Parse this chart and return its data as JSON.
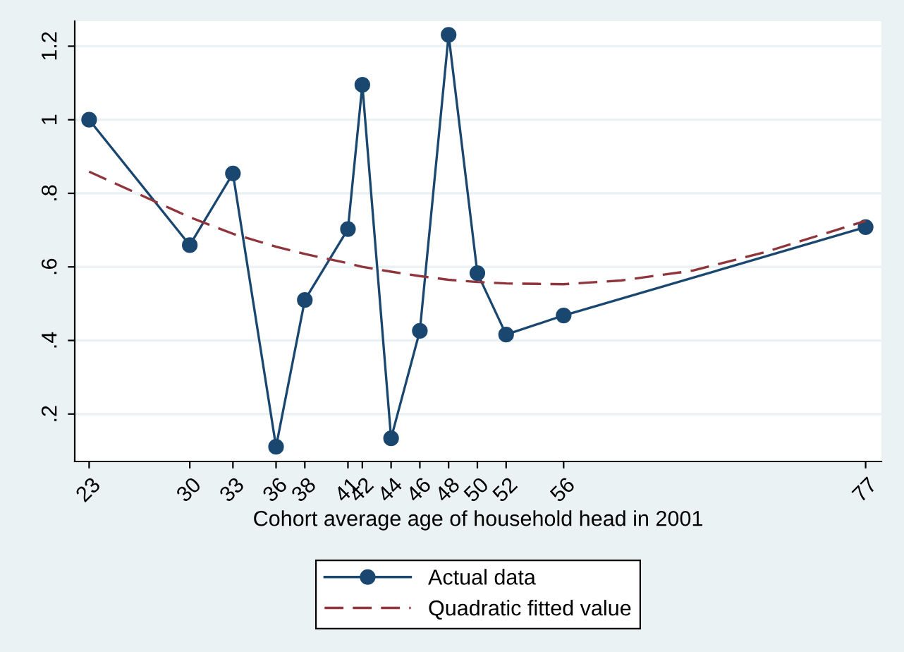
{
  "chart_data": {
    "type": "line",
    "xlabel": "Cohort average age of household head in 2001",
    "xlim": [
      22.0,
      78.1
    ],
    "ylim": [
      0.071,
      1.268
    ],
    "xticks": [
      23,
      30,
      33,
      36,
      38,
      41,
      42,
      44,
      46,
      48,
      50,
      52,
      56,
      77
    ],
    "yticks": [
      {
        "value": 0.2,
        "label": ".2"
      },
      {
        "value": 0.4,
        "label": ".4"
      },
      {
        "value": 0.6,
        "label": ".6"
      },
      {
        "value": 0.8,
        "label": ".8"
      },
      {
        "value": 1,
        "label": "1"
      },
      {
        "value": 1.2,
        "label": "1.2"
      }
    ],
    "grid": "y",
    "legend": "bottom",
    "series": [
      {
        "name": "Actual data",
        "color": "#1a476f",
        "marker": "circle",
        "line_style": "solid",
        "x": [
          23,
          30,
          33,
          36,
          38,
          41,
          42,
          44,
          46,
          48,
          50,
          52,
          56,
          77
        ],
        "values": [
          1.0,
          0.659,
          0.854,
          0.111,
          0.51,
          0.703,
          1.095,
          0.134,
          0.426,
          1.231,
          0.583,
          0.416,
          0.468,
          0.708
        ]
      },
      {
        "name": "Quadratic fitted value",
        "color": "#90353b",
        "marker": "none",
        "line_style": "dashed",
        "x": [
          23,
          30,
          33,
          36,
          38,
          41,
          42,
          44,
          46,
          48,
          50,
          52,
          56,
          60,
          65,
          70,
          77
        ],
        "values": [
          0.859,
          0.735,
          0.69,
          0.655,
          0.635,
          0.61,
          0.6,
          0.587,
          0.575,
          0.565,
          0.559,
          0.555,
          0.553,
          0.563,
          0.59,
          0.64,
          0.725
        ]
      }
    ]
  }
}
